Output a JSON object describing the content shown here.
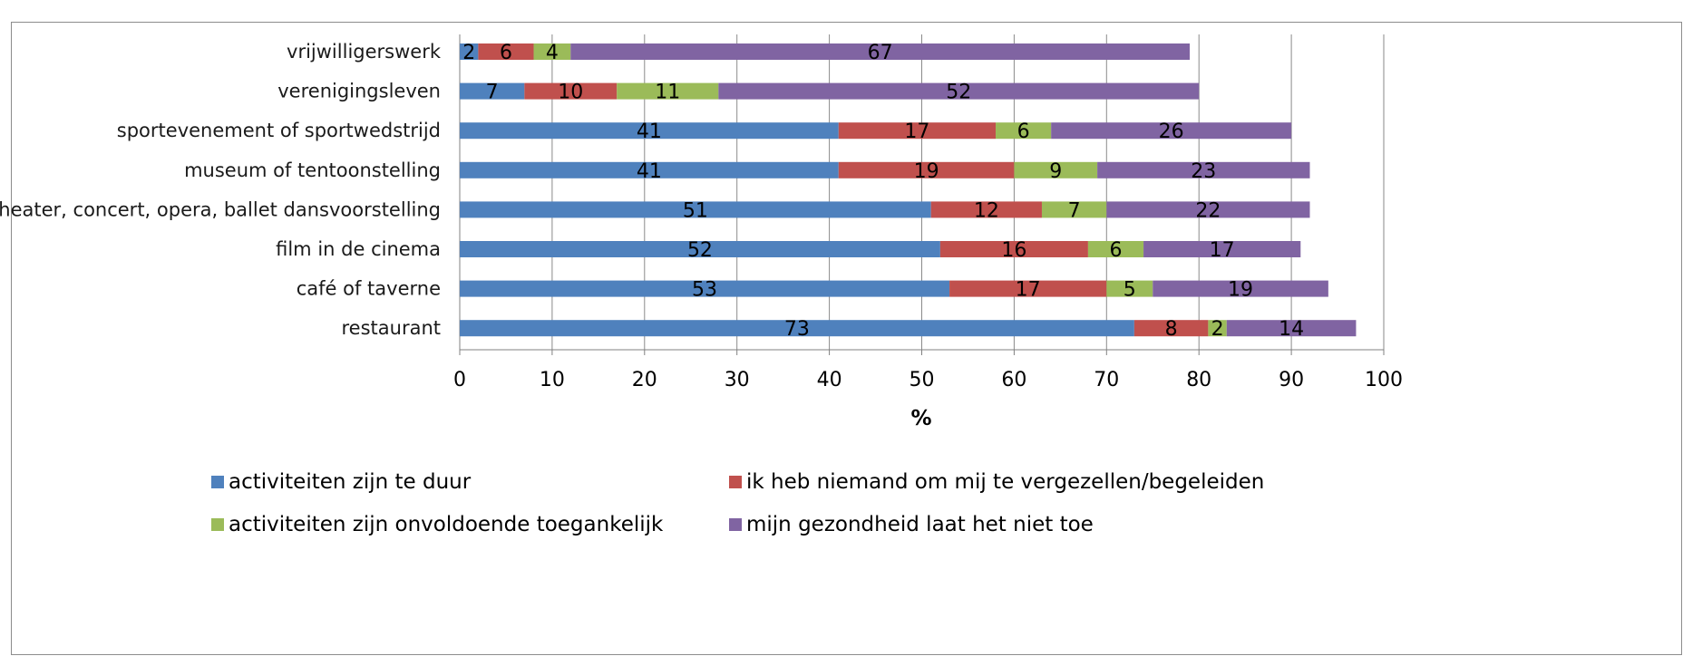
{
  "chart_data": {
    "type": "bar",
    "orientation": "horizontal",
    "stacked": true,
    "xlabel": "%",
    "xlim": [
      0,
      100
    ],
    "xticks": [
      0,
      10,
      20,
      30,
      40,
      50,
      60,
      70,
      80,
      90,
      100
    ],
    "grid": "vertical-major",
    "legend_position": "bottom",
    "categories": [
      "vrijwilligerswerk",
      "verenigingsleven",
      "sportevenement of sportwedstrijd",
      "museum of tentoonstelling",
      "theater, concert, opera, ballet dansvoorstelling",
      "film in de cinema",
      "café of taverne",
      "restaurant"
    ],
    "series": [
      {
        "name": "activiteiten zijn te duur",
        "color": "#4f81bd",
        "values": [
          2,
          7,
          41,
          41,
          51,
          52,
          53,
          73
        ]
      },
      {
        "name": "ik heb niemand om mij te vergezellen/begeleiden",
        "color": "#c0504d",
        "values": [
          6,
          10,
          17,
          19,
          12,
          16,
          17,
          8
        ]
      },
      {
        "name": "activiteiten zijn onvoldoende toegankelijk",
        "color": "#9bbb59",
        "values": [
          4,
          11,
          6,
          9,
          7,
          6,
          5,
          2
        ]
      },
      {
        "name": "mijn gezondheid laat het niet toe",
        "color": "#8064a2",
        "values": [
          67,
          52,
          26,
          23,
          22,
          17,
          19,
          14
        ]
      }
    ]
  }
}
